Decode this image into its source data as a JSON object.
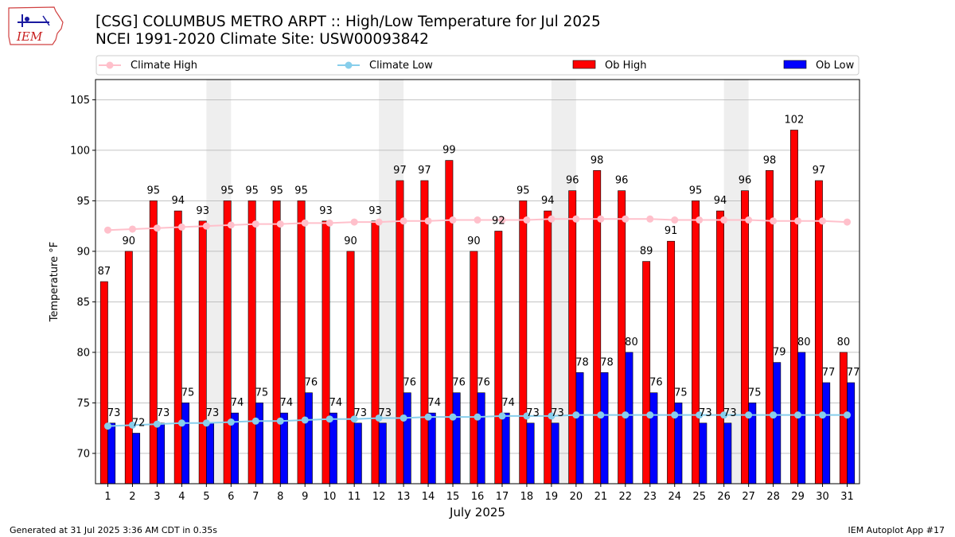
{
  "header": {
    "title_line1": "[CSG] COLUMBUS METRO ARPT :: High/Low Temperature for Jul 2025",
    "title_line2": "NCEI 1991-2020 Climate Site: USW00093842"
  },
  "logo": {
    "text": "IEM"
  },
  "footer": {
    "generated": "Generated at 31 Jul 2025 3:36 AM CDT in 0.35s",
    "app": "IEM Autoplot App #17"
  },
  "colors": {
    "climate_high": "#ffc0cb",
    "climate_low": "#87ceeb",
    "ob_high": "#ff0000",
    "ob_low": "#0000ff",
    "weekend_shade": "#eeeeee",
    "grid": "#b0b0b0"
  },
  "chart_data": {
    "type": "bar",
    "xlabel": "July 2025",
    "ylabel": "Temperature °F",
    "ylim": [
      67,
      107
    ],
    "yticks": [
      70,
      75,
      80,
      85,
      90,
      95,
      100,
      105
    ],
    "grid": "horizontal",
    "legend_position": "top",
    "categories": [
      "1",
      "2",
      "3",
      "4",
      "5",
      "6",
      "7",
      "8",
      "9",
      "10",
      "11",
      "12",
      "13",
      "14",
      "15",
      "16",
      "17",
      "18",
      "19",
      "20",
      "21",
      "22",
      "23",
      "24",
      "25",
      "26",
      "27",
      "28",
      "29",
      "30",
      "31"
    ],
    "shaded_day_pairs": [
      [
        5,
        6
      ],
      [
        12,
        13
      ],
      [
        19,
        20
      ],
      [
        26,
        27
      ]
    ],
    "series": [
      {
        "name": "Climate High",
        "kind": "line",
        "values": [
          92.1,
          92.2,
          92.3,
          92.4,
          92.5,
          92.6,
          92.7,
          92.7,
          92.8,
          92.8,
          92.9,
          92.9,
          93.0,
          93.0,
          93.1,
          93.1,
          93.1,
          93.1,
          93.2,
          93.2,
          93.2,
          93.2,
          93.2,
          93.1,
          93.1,
          93.1,
          93.1,
          93.0,
          93.0,
          93.0,
          92.9
        ]
      },
      {
        "name": "Climate Low",
        "kind": "line",
        "values": [
          72.7,
          72.8,
          72.9,
          73.0,
          73.0,
          73.1,
          73.2,
          73.2,
          73.3,
          73.4,
          73.4,
          73.5,
          73.5,
          73.6,
          73.6,
          73.6,
          73.7,
          73.7,
          73.7,
          73.8,
          73.8,
          73.8,
          73.8,
          73.8,
          73.8,
          73.8,
          73.8,
          73.8,
          73.8,
          73.8,
          73.8
        ]
      },
      {
        "name": "Ob High",
        "kind": "bar",
        "values": [
          87,
          90,
          95,
          94,
          93,
          95,
          95,
          95,
          95,
          93,
          90,
          93,
          97,
          97,
          99,
          90,
          92,
          95,
          94,
          96,
          98,
          96,
          89,
          91,
          95,
          94,
          96,
          98,
          102,
          97,
          80
        ]
      },
      {
        "name": "Ob Low",
        "kind": "bar",
        "values": [
          73,
          72,
          73,
          75,
          73,
          74,
          75,
          74,
          76,
          74,
          73,
          73,
          76,
          74,
          76,
          76,
          74,
          73,
          73,
          78,
          78,
          80,
          76,
          75,
          73,
          73,
          75,
          79,
          80,
          77,
          77
        ]
      }
    ]
  }
}
